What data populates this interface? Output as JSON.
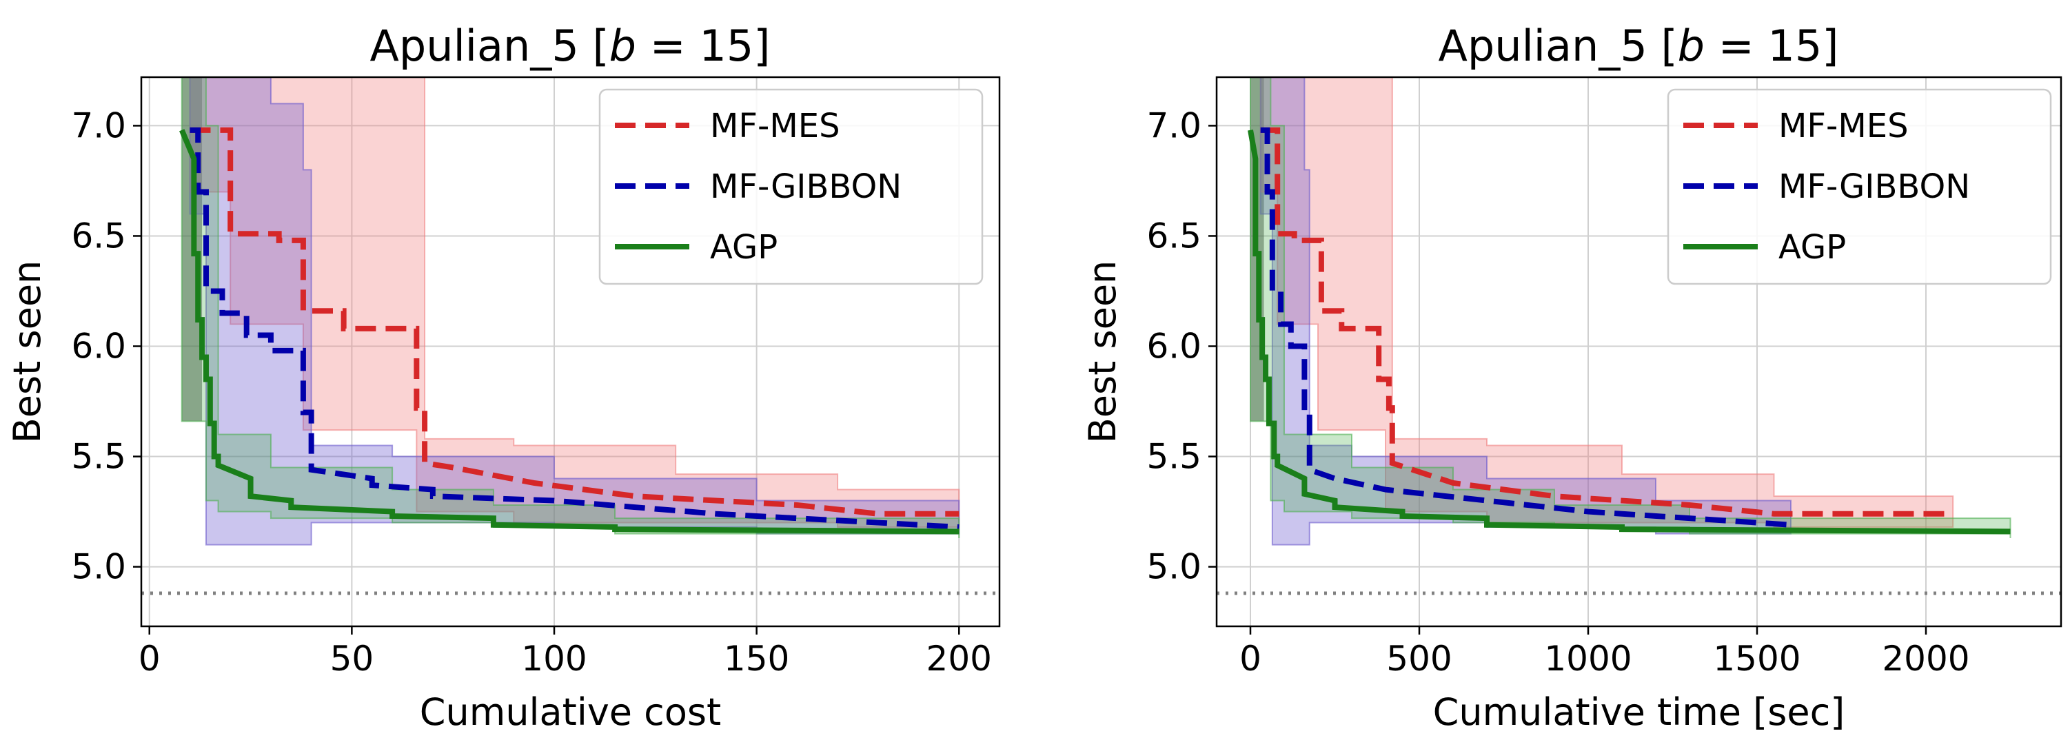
{
  "chart_data": [
    {
      "type": "line",
      "title": "Apulian_5 [b = 15]",
      "title_prefix": "Apulian_5 [",
      "title_var": "b",
      "title_suffix": " = 15]",
      "xlabel": "Cumulative cost",
      "ylabel": "Best seen",
      "xlim": [
        -2,
        210
      ],
      "ylim": [
        4.73,
        7.22
      ],
      "xticks": [
        0,
        50,
        100,
        150,
        200
      ],
      "yticks": [
        5.0,
        5.5,
        6.0,
        6.5,
        7.0
      ],
      "xtick_labels": [
        "0",
        "50",
        "100",
        "150",
        "200"
      ],
      "ytick_labels": [
        "5.0",
        "5.5",
        "6.0",
        "6.5",
        "7.0"
      ],
      "reference_line": 4.88,
      "legend_position": "top-right",
      "series": [
        {
          "name": "MF-MES",
          "color": "#d62728",
          "style": "dashed",
          "x": [
            10,
            20,
            20,
            32,
            32,
            38,
            38,
            48,
            48,
            66,
            66,
            68,
            68,
            75,
            95,
            120,
            160,
            180,
            200
          ],
          "y": [
            6.98,
            6.98,
            6.51,
            6.51,
            6.48,
            6.48,
            6.16,
            6.16,
            6.08,
            6.08,
            5.72,
            5.72,
            5.47,
            5.45,
            5.38,
            5.32,
            5.28,
            5.24,
            5.24
          ],
          "band_x": [
            10,
            20,
            38,
            66,
            68,
            90,
            130,
            170,
            200
          ],
          "band_upper": [
            7.22,
            7.22,
            7.22,
            7.22,
            5.58,
            5.55,
            5.42,
            5.35,
            5.3
          ],
          "band_lower": [
            6.7,
            6.1,
            5.62,
            5.25,
            5.25,
            5.2,
            5.2,
            5.18,
            5.18
          ]
        },
        {
          "name": "MF-GIBBON",
          "color": "#0000aa",
          "style": "dashed",
          "x": [
            10,
            12,
            12,
            14,
            14,
            18,
            18,
            24,
            24,
            30,
            30,
            38,
            38,
            40,
            40,
            55,
            55,
            70,
            70,
            100,
            140,
            180,
            200
          ],
          "y": [
            6.98,
            6.98,
            6.7,
            6.7,
            6.25,
            6.25,
            6.15,
            6.15,
            6.05,
            6.05,
            5.98,
            5.98,
            5.7,
            5.7,
            5.44,
            5.4,
            5.37,
            5.35,
            5.32,
            5.3,
            5.24,
            5.2,
            5.18
          ],
          "band_x": [
            10,
            14,
            20,
            30,
            38,
            40,
            60,
            100,
            150,
            200
          ],
          "band_upper": [
            7.22,
            7.22,
            7.22,
            7.1,
            6.8,
            5.55,
            5.5,
            5.4,
            5.3,
            5.22
          ],
          "band_lower": [
            6.6,
            5.1,
            5.1,
            5.1,
            5.1,
            5.2,
            5.2,
            5.18,
            5.15,
            5.15
          ]
        },
        {
          "name": "AGP",
          "color": "#1a7f1a",
          "style": "solid",
          "x": [
            8,
            11,
            11,
            12,
            12,
            13,
            13,
            14,
            14,
            15,
            15,
            16,
            16,
            17,
            17,
            25,
            25,
            35,
            35,
            60,
            60,
            85,
            85,
            115,
            115,
            200
          ],
          "y": [
            6.98,
            6.85,
            6.42,
            6.42,
            6.12,
            6.12,
            5.95,
            5.95,
            5.85,
            5.85,
            5.65,
            5.65,
            5.5,
            5.5,
            5.46,
            5.4,
            5.32,
            5.3,
            5.27,
            5.25,
            5.23,
            5.22,
            5.19,
            5.18,
            5.17,
            5.16
          ],
          "band_x": [
            8,
            11,
            14,
            17,
            30,
            60,
            85,
            115,
            200
          ],
          "band_upper": [
            7.22,
            7.22,
            7.0,
            5.6,
            5.45,
            5.35,
            5.28,
            5.22,
            5.2
          ],
          "band_lower": [
            5.66,
            5.66,
            5.3,
            5.25,
            5.22,
            5.2,
            5.18,
            5.15,
            5.13
          ]
        }
      ],
      "gray_band": {
        "x": [
          8,
          13
        ],
        "upper": 7.22,
        "lower": 5.66
      }
    },
    {
      "type": "line",
      "title": "Apulian_5 [b = 15]",
      "title_prefix": "Apulian_5 [",
      "title_var": "b",
      "title_suffix": " = 15]",
      "xlabel": "Cumulative time [sec]",
      "ylabel": "Best seen",
      "xlim": [
        -100,
        2400
      ],
      "ylim": [
        4.73,
        7.22
      ],
      "xticks": [
        0,
        500,
        1000,
        1500,
        2000
      ],
      "yticks": [
        5.0,
        5.5,
        6.0,
        6.5,
        7.0
      ],
      "xtick_labels": [
        "0",
        "500",
        "1000",
        "1500",
        "2000"
      ],
      "ytick_labels": [
        "5.0",
        "5.5",
        "6.0",
        "6.5",
        "7.0"
      ],
      "reference_line": 4.88,
      "legend_position": "top-right",
      "series": [
        {
          "name": "MF-MES",
          "color": "#d62728",
          "style": "dashed",
          "x": [
            30,
            80,
            80,
            130,
            130,
            210,
            210,
            270,
            270,
            380,
            380,
            410,
            410,
            420,
            420,
            600,
            900,
            1300,
            1550,
            2080
          ],
          "y": [
            6.98,
            6.98,
            6.51,
            6.51,
            6.48,
            6.48,
            6.16,
            6.16,
            6.08,
            6.08,
            5.85,
            5.85,
            5.72,
            5.72,
            5.47,
            5.38,
            5.32,
            5.28,
            5.24,
            5.24
          ],
          "band_x": [
            30,
            80,
            200,
            400,
            420,
            700,
            1100,
            1550,
            2080
          ],
          "band_upper": [
            7.22,
            7.22,
            7.22,
            7.22,
            5.58,
            5.55,
            5.42,
            5.32,
            5.3
          ],
          "band_lower": [
            6.7,
            6.1,
            5.62,
            5.25,
            5.25,
            5.2,
            5.2,
            5.18,
            5.18
          ]
        },
        {
          "name": "MF-GIBBON",
          "color": "#0000aa",
          "style": "dashed",
          "x": [
            30,
            50,
            50,
            65,
            65,
            90,
            90,
            120,
            120,
            160,
            160,
            175,
            175,
            250,
            400,
            700,
            1000,
            1300,
            1600
          ],
          "y": [
            6.98,
            6.98,
            6.7,
            6.7,
            6.25,
            6.25,
            6.1,
            6.1,
            6.0,
            6.0,
            5.7,
            5.7,
            5.44,
            5.4,
            5.35,
            5.3,
            5.25,
            5.22,
            5.19
          ],
          "band_x": [
            30,
            65,
            100,
            160,
            175,
            300,
            700,
            1200,
            1600
          ],
          "band_upper": [
            7.22,
            7.22,
            7.22,
            6.8,
            5.55,
            5.5,
            5.4,
            5.3,
            5.22
          ],
          "band_lower": [
            6.6,
            5.1,
            5.1,
            5.1,
            5.2,
            5.2,
            5.18,
            5.15,
            5.15
          ]
        },
        {
          "name": "AGP",
          "color": "#1a7f1a",
          "style": "solid",
          "x": [
            0,
            15,
            15,
            25,
            25,
            35,
            35,
            45,
            45,
            55,
            55,
            70,
            70,
            80,
            80,
            160,
            160,
            250,
            250,
            450,
            450,
            700,
            700,
            1100,
            1100,
            2250
          ],
          "y": [
            6.98,
            6.85,
            6.42,
            6.42,
            6.12,
            6.12,
            5.95,
            5.95,
            5.85,
            5.85,
            5.65,
            5.65,
            5.5,
            5.5,
            5.46,
            5.4,
            5.33,
            5.3,
            5.27,
            5.25,
            5.23,
            5.22,
            5.19,
            5.18,
            5.17,
            5.16
          ],
          "band_x": [
            0,
            30,
            60,
            100,
            300,
            600,
            900,
            1300,
            2250
          ],
          "band_upper": [
            7.22,
            7.22,
            7.0,
            5.6,
            5.45,
            5.35,
            5.28,
            5.22,
            5.2
          ],
          "band_lower": [
            5.66,
            5.66,
            5.3,
            5.25,
            5.22,
            5.2,
            5.18,
            5.15,
            5.13
          ]
        }
      ],
      "gray_band": {
        "x": [
          0,
          40
        ],
        "upper": 7.22,
        "lower": 5.66
      }
    }
  ]
}
